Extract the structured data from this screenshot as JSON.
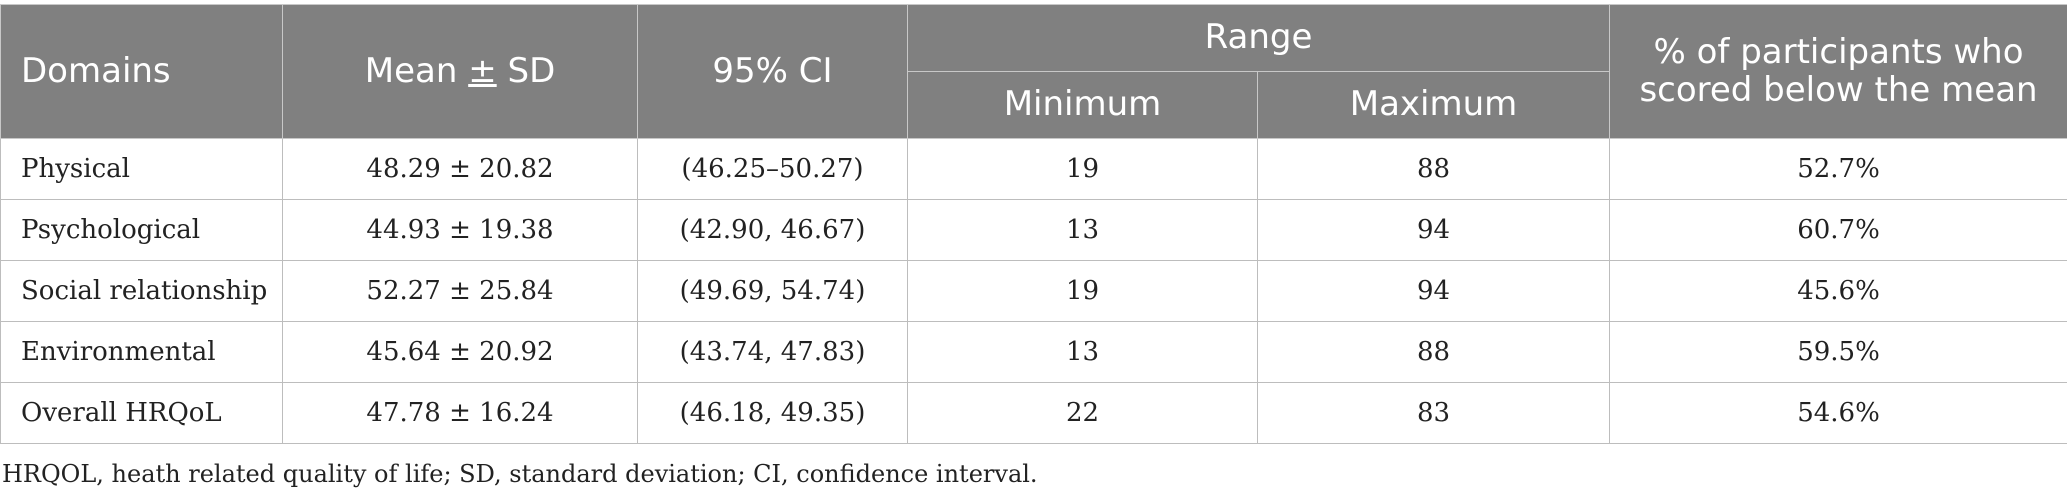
{
  "table": {
    "headers": {
      "domains": "Domains",
      "mean_sd": "Mean ± SD",
      "ci": "95% CI",
      "range": "Range",
      "minimum": "Minimum",
      "maximum": "Maximum",
      "percent_below": "% of participants who scored below the mean"
    },
    "rows": [
      {
        "domain": "Physical",
        "mean_sd": "48.29 ± 20.82",
        "ci": "(46.25–50.27)",
        "min": "19",
        "max": "88",
        "pct": "52.7%"
      },
      {
        "domain": "Psychological",
        "mean_sd": "44.93 ± 19.38",
        "ci": "(42.90, 46.67)",
        "min": "13",
        "max": "94",
        "pct": "60.7%"
      },
      {
        "domain": "Social relationship",
        "mean_sd": "52.27 ± 25.84",
        "ci": "(49.69, 54.74)",
        "min": "19",
        "max": "94",
        "pct": "45.6%"
      },
      {
        "domain": "Environmental",
        "mean_sd": "45.64 ± 20.92",
        "ci": "(43.74, 47.83)",
        "min": "13",
        "max": "88",
        "pct": "59.5%"
      },
      {
        "domain": "Overall HRQoL",
        "mean_sd": "47.78 ± 16.24",
        "ci": "(46.18, 49.35)",
        "min": "22",
        "max": "83",
        "pct": "54.6%"
      }
    ]
  },
  "footnote": "HRQOL, heath related quality of life; SD, standard deviation; CI, confidence interval.",
  "colors": {
    "header_bg": "#808080",
    "header_text": "#ffffff",
    "border": "#bdbdbd"
  }
}
